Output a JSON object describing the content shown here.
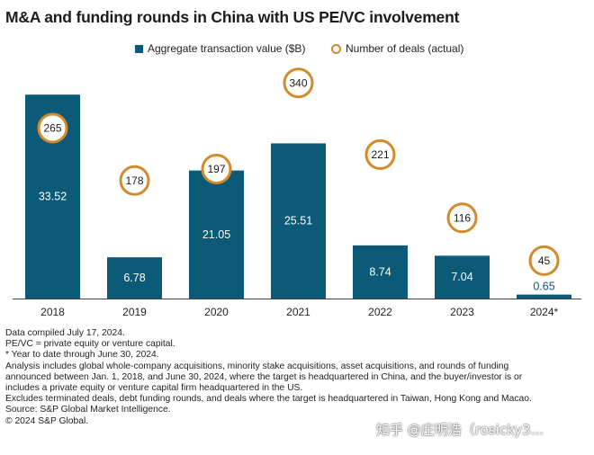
{
  "title": "M&A and funding rounds in China with US PE/VC involvement",
  "legend": {
    "bar_label": "Aggregate transaction value ($B)",
    "ring_label": "Number of deals (actual)"
  },
  "colors": {
    "bar": "#0b5a78",
    "ring": "#d38b2a",
    "axis": "#444444"
  },
  "chart_data": {
    "type": "bar",
    "title": "M&A and funding rounds in China with US PE/VC involvement",
    "categories": [
      "2018",
      "2019",
      "2020",
      "2021",
      "2022",
      "2023",
      "2024*"
    ],
    "series": [
      {
        "name": "Aggregate transaction value ($B)",
        "type": "bar",
        "values": [
          33.52,
          6.78,
          21.05,
          25.51,
          8.74,
          7.04,
          0.65
        ]
      },
      {
        "name": "Number of deals (actual)",
        "type": "marker",
        "values": [
          265,
          178,
          197,
          340,
          221,
          116,
          45
        ]
      }
    ],
    "value_labels": [
      "33.52",
      "6.78",
      "21.05",
      "25.51",
      "8.74",
      "7.04",
      "0.65"
    ],
    "count_labels": [
      "265",
      "178",
      "197",
      "340",
      "221",
      "116",
      "45"
    ],
    "bar_ylim": [
      0,
      34
    ],
    "count_ylim": [
      0,
      400
    ],
    "xlabel": "",
    "ylabel": "",
    "grid": false,
    "legend_position": "top-center"
  },
  "notes": [
    "Data compiled July 17, 2024.",
    "PE/VC = private equity or venture capital.",
    "* Year to date through June 30, 2024.",
    "Analysis includes global whole-company acquisitions, minority stake acquisitions, asset acquisitions, and rounds of funding",
    "announced between Jan. 1, 2018, and June 30, 2024, where the target is headquartered in China, and the buyer/investor is or",
    "includes a private equity or venture capital firm headquartered in the US.",
    "Excludes terminated deals, debt funding rounds, and deals where the target is headquartered in Taiwan, Hong Kong and Macao.",
    "Source: S&P Global Market Intelligence.",
    "© 2024 S&P Global."
  ],
  "watermark": "知乎 @庄明浩（rosicky3..."
}
